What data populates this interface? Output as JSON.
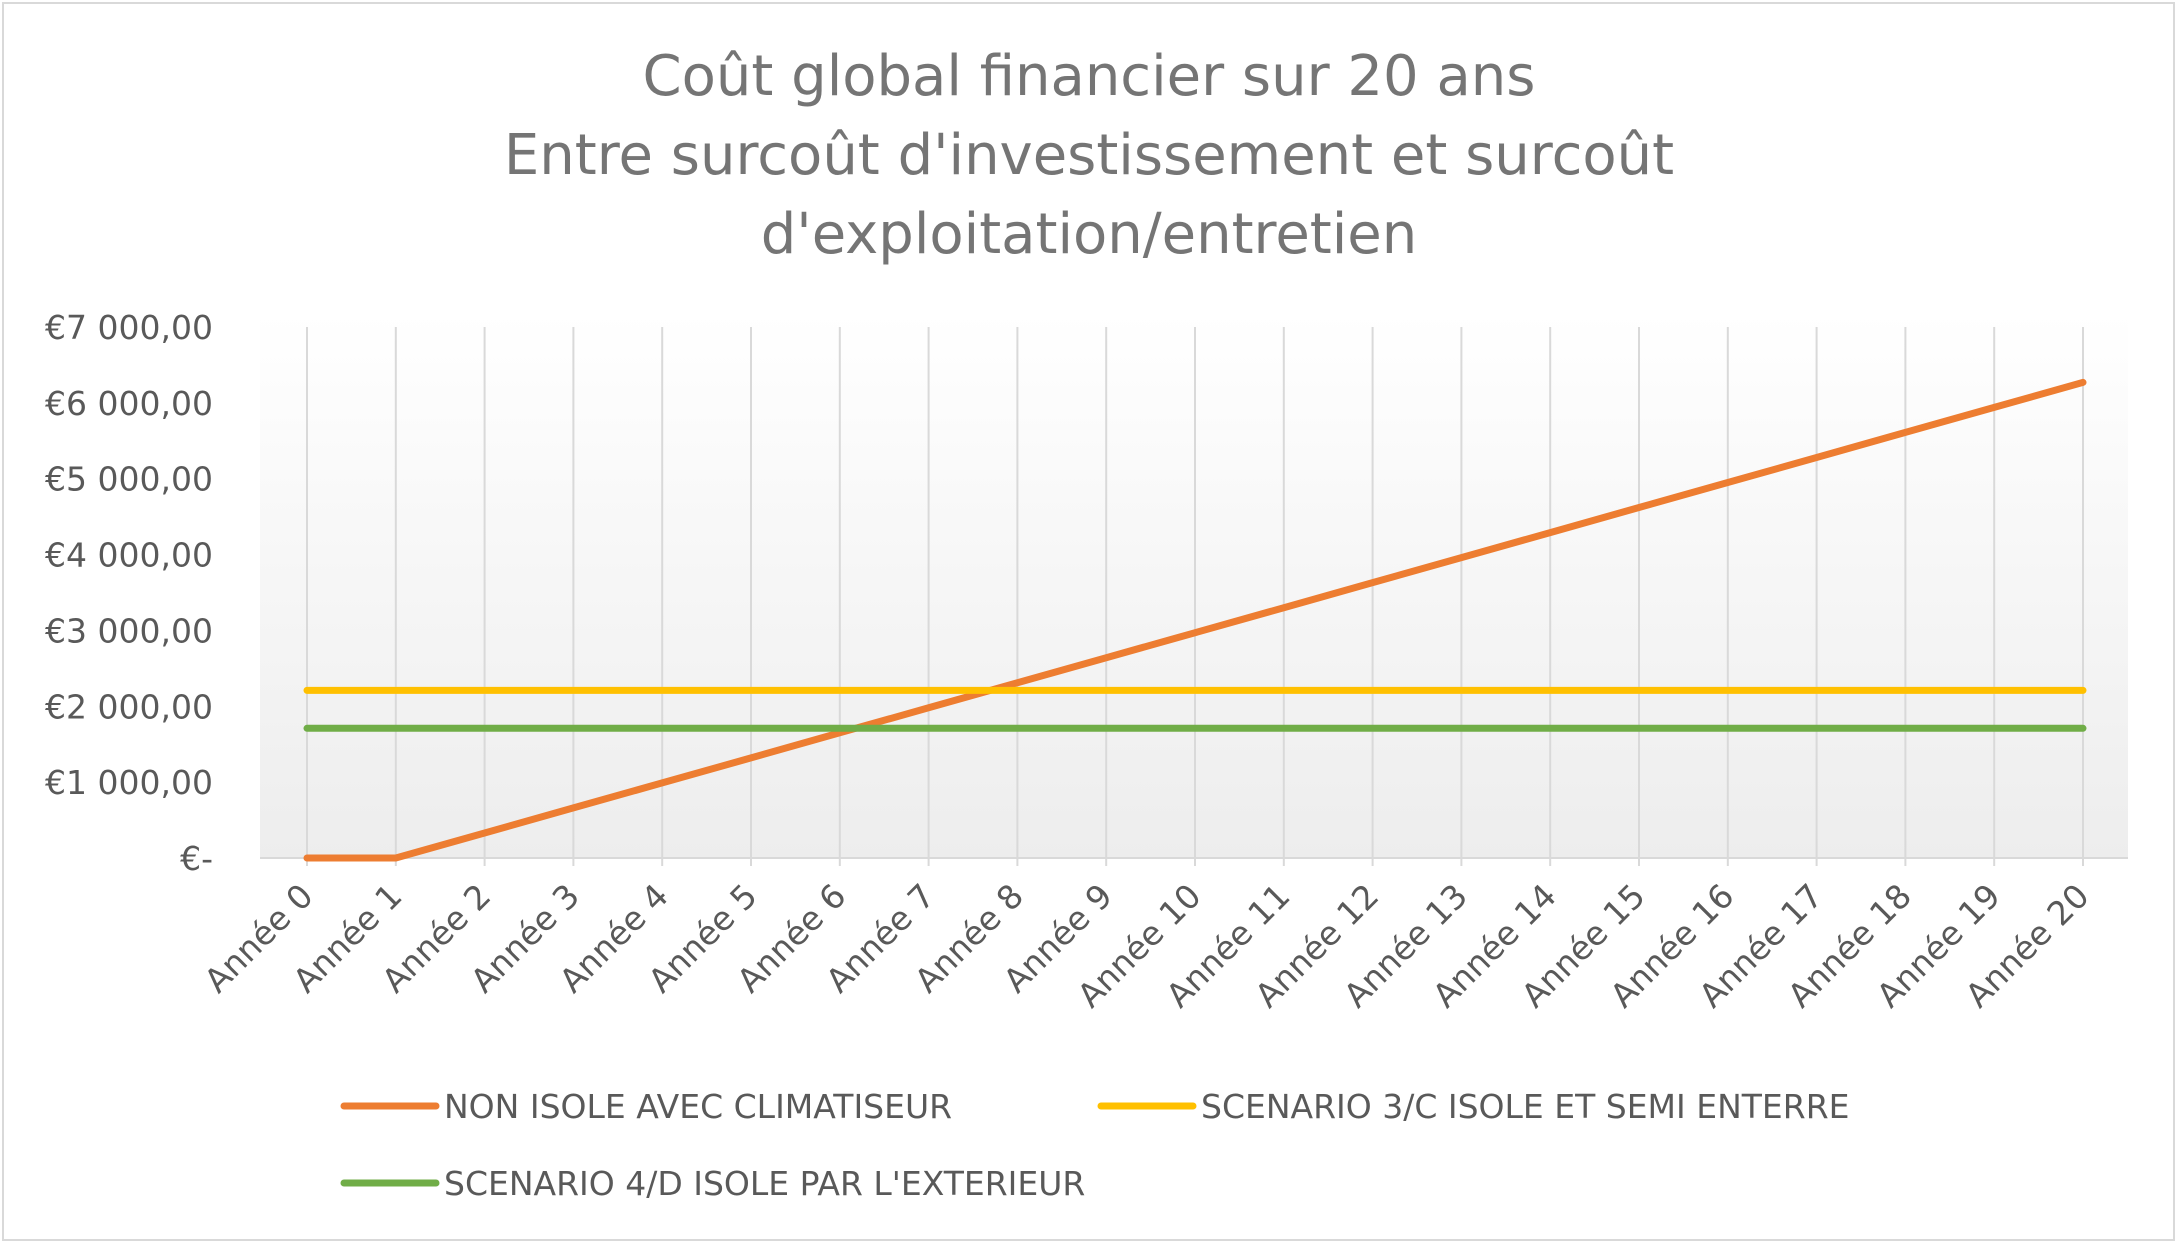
{
  "chart_data": {
    "type": "line",
    "title_lines": [
      "Coût global financier sur 20 ans",
      "Entre surcoût d'investissement et surcoût",
      "d'exploitation/entretien"
    ],
    "xlabel": "",
    "ylabel": "",
    "categories": [
      "Année 0",
      "Année 1",
      "Année 2",
      "Année 3",
      "Année 4",
      "Année 5",
      "Année 6",
      "Année 7",
      "Année 8",
      "Année 9",
      "Année 10",
      "Année 11",
      "Année 12",
      "Année 13",
      "Année 14",
      "Année 15",
      "Année 16",
      "Année 17",
      "Année 18",
      "Année 19",
      "Année 20"
    ],
    "yticks": [
      {
        "value": 0,
        "label": "€-"
      },
      {
        "value": 1000,
        "label": "€1 000,00"
      },
      {
        "value": 2000,
        "label": "€2 000,00"
      },
      {
        "value": 3000,
        "label": "€3 000,00"
      },
      {
        "value": 4000,
        "label": "€4 000,00"
      },
      {
        "value": 5000,
        "label": "€5 000,00"
      },
      {
        "value": 6000,
        "label": "€6 000,00"
      },
      {
        "value": 7000,
        "label": "€7 000,00"
      }
    ],
    "ylim": [
      0,
      7000
    ],
    "grid": "vertical",
    "legend_position": "bottom",
    "series": [
      {
        "name": "NON ISOLE AVEC CLIMATISEUR",
        "color": "#ED7D31",
        "values": [
          0,
          0,
          330,
          660,
          990,
          1320,
          1650,
          1980,
          2310,
          2640,
          2970,
          3300,
          3630,
          3960,
          4290,
          4620,
          4950,
          5280,
          5610,
          5940,
          6270
        ]
      },
      {
        "name": "SCENARIO 3/C ISOLE ET SEMI ENTERRE",
        "color": "#FFC000",
        "values": [
          2210,
          2210,
          2210,
          2210,
          2210,
          2210,
          2210,
          2210,
          2210,
          2210,
          2210,
          2210,
          2210,
          2210,
          2210,
          2210,
          2210,
          2210,
          2210,
          2210,
          2210
        ]
      },
      {
        "name": "SCENARIO 4/D ISOLE PAR L'EXTERIEUR",
        "color": "#70AD47",
        "values": [
          1710,
          1710,
          1710,
          1710,
          1710,
          1710,
          1710,
          1710,
          1710,
          1710,
          1710,
          1710,
          1710,
          1710,
          1710,
          1710,
          1710,
          1710,
          1710,
          1710,
          1710
        ]
      }
    ]
  }
}
